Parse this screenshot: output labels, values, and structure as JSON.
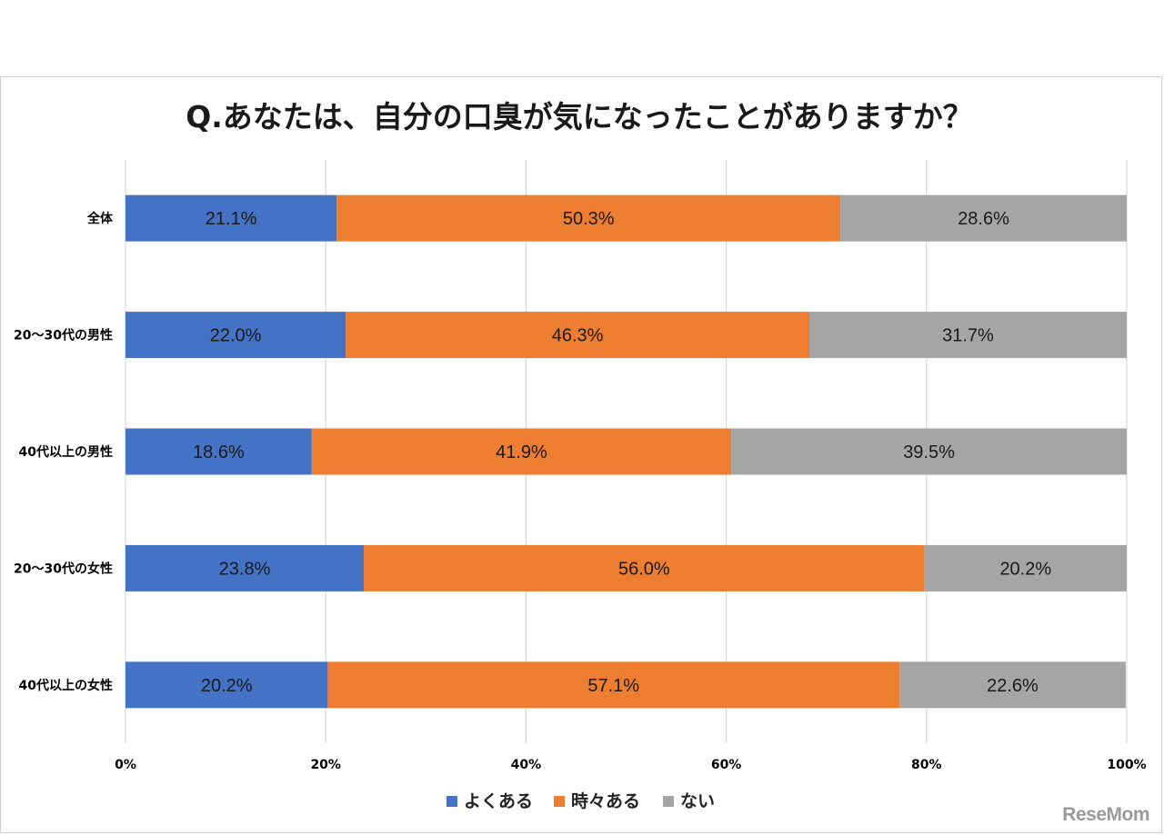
{
  "chart_data": {
    "type": "bar",
    "orientation": "horizontal",
    "stacked": "percent",
    "title": "Q.あなたは、自分の口臭が気になったことがありますか？",
    "categories": [
      "全体",
      "20～30代の男性",
      "40代以上の男性",
      "20～30代の女性",
      "40代以上の女性"
    ],
    "series": [
      {
        "name": "よくある",
        "color": "#4472C4",
        "values": [
          21.1,
          22.0,
          18.6,
          23.8,
          20.2
        ],
        "labels": [
          "21.1%",
          "22.0%",
          "18.6%",
          "23.8%",
          "20.2%"
        ]
      },
      {
        "name": "時々ある",
        "color": "#ED7D31",
        "values": [
          50.3,
          46.3,
          41.9,
          56.0,
          57.1
        ],
        "labels": [
          "50.3%",
          "46.3%",
          "41.9%",
          "56.0%",
          "57.1%"
        ]
      },
      {
        "name": "ない",
        "color": "#A5A5A5",
        "values": [
          28.6,
          31.7,
          39.5,
          20.2,
          22.6
        ],
        "labels": [
          "28.6%",
          "31.7%",
          "39.5%",
          "20.2%",
          "22.6%"
        ]
      }
    ],
    "xlim": [
      0,
      100
    ],
    "xticks": [
      "0%",
      "20%",
      "40%",
      "60%",
      "80%",
      "100%"
    ],
    "grid": true,
    "legend_position": "bottom"
  },
  "watermark": "ReseMom"
}
